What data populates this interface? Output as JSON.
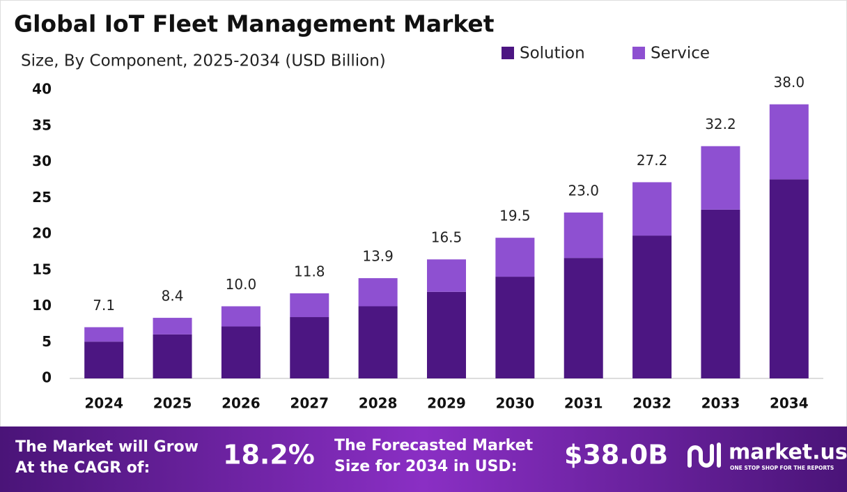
{
  "chart_data": {
    "type": "stacked-bar",
    "title": "Global IoT Fleet Management Market",
    "subtitle": "Size, By Component, 2025-2034 (USD Billion)",
    "categories": [
      "2024",
      "2025",
      "2026",
      "2027",
      "2028",
      "2029",
      "2030",
      "2031",
      "2032",
      "2033",
      "2034"
    ],
    "series": [
      {
        "name": "Solution",
        "color": "#4c1682",
        "values": [
          5.1,
          6.1,
          7.2,
          8.5,
          10.0,
          12.0,
          14.1,
          16.7,
          19.8,
          23.4,
          27.6
        ]
      },
      {
        "name": "Service",
        "color": "#8e50d1",
        "values": [
          2.0,
          2.3,
          2.8,
          3.3,
          3.9,
          4.5,
          5.4,
          6.3,
          7.4,
          8.8,
          10.4
        ]
      }
    ],
    "totals": [
      7.1,
      8.4,
      10.0,
      11.8,
      13.9,
      16.5,
      19.5,
      23.0,
      27.2,
      32.2,
      38.0
    ],
    "total_labels": [
      "7.1",
      "8.4",
      "10.0",
      "11.8",
      "13.9",
      "16.5",
      "19.5",
      "23.0",
      "27.2",
      "32.2",
      "38.0"
    ],
    "ylim": [
      0,
      40
    ],
    "yticks": [
      0,
      5,
      10,
      15,
      20,
      25,
      30,
      35,
      40
    ],
    "grid": false
  },
  "footer": {
    "cagr_label": [
      "The Market will Grow",
      "At the CAGR of:"
    ],
    "cagr_value": "18.2%",
    "forecast_label": [
      "The Forecasted Market",
      "Size for 2034 in USD:"
    ],
    "forecast_value": "$38.0B",
    "brand": "market.us",
    "tagline": "ONE STOP SHOP FOR THE REPORTS"
  }
}
